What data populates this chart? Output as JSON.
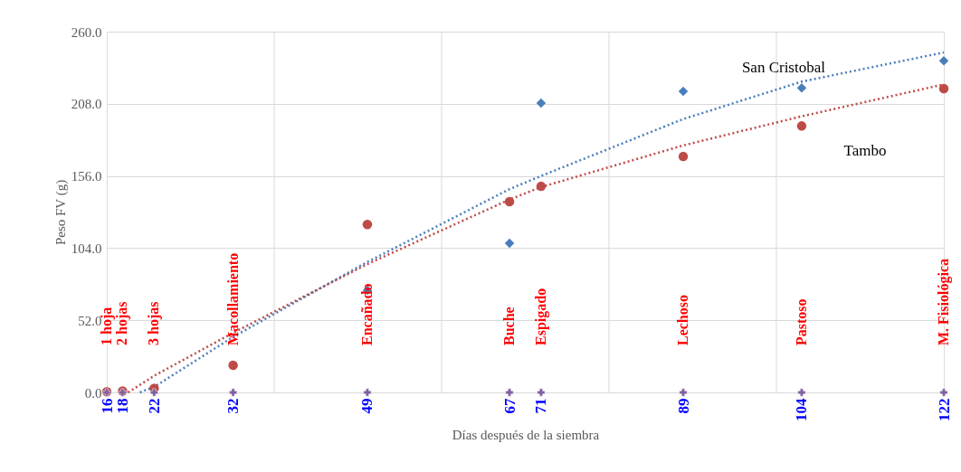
{
  "chart_data": {
    "type": "scatter",
    "xlabel": "Días después de la siembra",
    "ylabel": "Peso FV (g)",
    "xlim": [
      16,
      122
    ],
    "ylim": [
      0,
      260
    ],
    "xticks": [
      16,
      18,
      22,
      32,
      49,
      67,
      71,
      89,
      104,
      122,
      {
        "value": 37.2,
        "label": null
      },
      {
        "value": 58.4,
        "label": null
      },
      {
        "value": 79.6,
        "label": null
      },
      {
        "value": 100.8,
        "label": null
      }
    ],
    "yticks": [
      {
        "value": 0,
        "label": "0.0"
      },
      {
        "value": 52,
        "label": "52.0"
      },
      {
        "value": 104,
        "label": "104.0"
      },
      {
        "value": 156,
        "label": "156.0"
      },
      {
        "value": 208,
        "label": "208.0"
      },
      {
        "value": 260,
        "label": "260.0"
      }
    ],
    "grid": true,
    "x": [
      16,
      18,
      22,
      32,
      49,
      67,
      71,
      89,
      104,
      122
    ],
    "series": [
      {
        "marker": "cross",
        "color": "#7f60a0",
        "values": [
          0,
          0,
          0,
          0,
          0,
          0,
          0,
          0,
          0,
          0
        ]
      },
      {
        "type": "line",
        "line_style": "dotted",
        "marker": "none",
        "color": "#4a7ebb",
        "x": [
          20.2,
          22,
          32,
          49,
          67,
          71,
          89,
          104,
          122
        ],
        "values": [
          0,
          4,
          40,
          94,
          146.5,
          156,
          197,
          224,
          245
        ]
      },
      {
        "type": "line",
        "line_style": "dotted",
        "marker": "none",
        "color": "#be4b48",
        "x": [
          18.7,
          22,
          32,
          49,
          67,
          71,
          89,
          104,
          122
        ],
        "values": [
          0,
          12,
          43,
          92.5,
          139,
          148,
          178,
          199,
          222
        ]
      },
      {
        "name": "San Cristobal",
        "marker": "diamond",
        "color": "#4a7ebb",
        "values": [
          null,
          null,
          null,
          null,
          73.6,
          107.5,
          208.5,
          217,
          219.5,
          239
        ]
      },
      {
        "name": "Tambo",
        "marker": "circle",
        "color": "#be4b48",
        "values": [
          0.5,
          1,
          3,
          19.5,
          121,
          137.5,
          148.5,
          170,
          192,
          219
        ]
      }
    ],
    "annotations": [
      "1 hoja",
      "2 hojas",
      "3 hojas",
      "Macollamiento",
      "Encañado",
      "Buche",
      "Espigado",
      "Lechoso",
      "Pastoso",
      "M. Fisiológica"
    ]
  }
}
